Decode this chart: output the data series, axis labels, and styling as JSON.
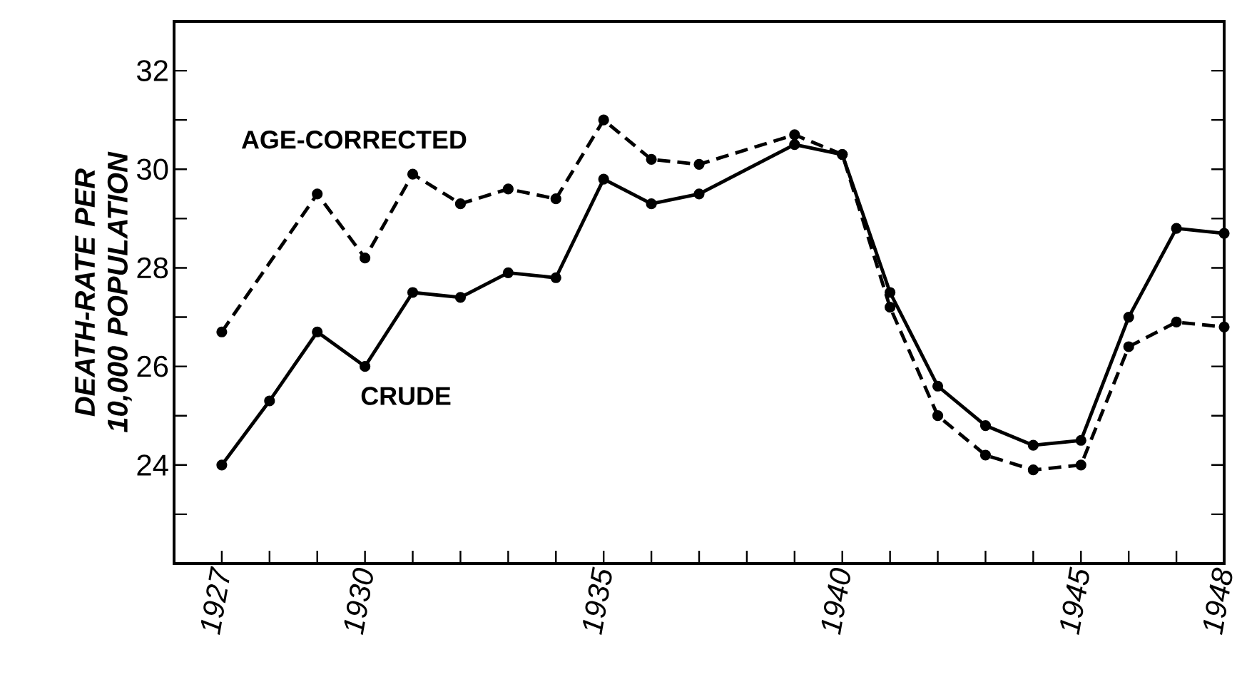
{
  "chart_data": {
    "type": "line",
    "ylabel": "DEATH-RATE PER 10,000 POPULATION",
    "xlim": [
      1926,
      1948
    ],
    "ylim": [
      22,
      33
    ],
    "xticks": [
      1927,
      {
        "value": 1928,
        "label": null
      },
      {
        "value": 1929,
        "label": null
      },
      1930,
      {
        "value": 1931,
        "label": null
      },
      {
        "value": 1932,
        "label": null
      },
      {
        "value": 1933,
        "label": null
      },
      {
        "value": 1934,
        "label": null
      },
      1935,
      {
        "value": 1936,
        "label": null
      },
      {
        "value": 1937,
        "label": null
      },
      {
        "value": 1938,
        "label": null
      },
      {
        "value": 1939,
        "label": null
      },
      1940,
      {
        "value": 1941,
        "label": null
      },
      {
        "value": 1942,
        "label": null
      },
      {
        "value": 1943,
        "label": null
      },
      {
        "value": 1944,
        "label": null
      },
      1945,
      {
        "value": 1946,
        "label": null
      },
      {
        "value": 1947,
        "label": null
      },
      1948
    ],
    "yticks": [
      {
        "value": 23,
        "label": null
      },
      24,
      {
        "value": 25,
        "label": null
      },
      26,
      {
        "value": 27,
        "label": null
      },
      28,
      {
        "value": 29,
        "label": null
      },
      30,
      {
        "value": 31,
        "label": null
      },
      32
    ],
    "marker": "circle",
    "legend": false,
    "series": [
      {
        "name": "AGE-CORRECTED",
        "color": "#000000",
        "line_style": "dashed",
        "x": [
          1927,
          1929,
          1930,
          1931,
          1932,
          1933,
          1934,
          1935,
          1936,
          1937,
          1939,
          1940,
          1941,
          1942,
          1943,
          1944,
          1945,
          1946,
          1947,
          1948
        ],
        "values": [
          26.7,
          29.5,
          28.2,
          29.9,
          29.3,
          29.6,
          29.4,
          31.0,
          30.2,
          30.1,
          30.7,
          30.3,
          27.2,
          25.0,
          24.2,
          23.9,
          24.0,
          26.4,
          26.9,
          26.8
        ]
      },
      {
        "name": "CRUDE",
        "color": "#000000",
        "line_style": "solid",
        "x": [
          1927,
          1928,
          1929,
          1930,
          1931,
          1932,
          1933,
          1934,
          1935,
          1936,
          1937,
          1939,
          1940,
          1941,
          1942,
          1943,
          1944,
          1945,
          1946,
          1947,
          1948
        ],
        "values": [
          24.0,
          25.3,
          26.7,
          26.0,
          27.5,
          27.4,
          27.9,
          27.8,
          29.8,
          29.3,
          29.5,
          30.5,
          30.3,
          27.5,
          25.6,
          24.8,
          24.4,
          24.5,
          27.0,
          28.8,
          28.7
        ]
      }
    ]
  }
}
